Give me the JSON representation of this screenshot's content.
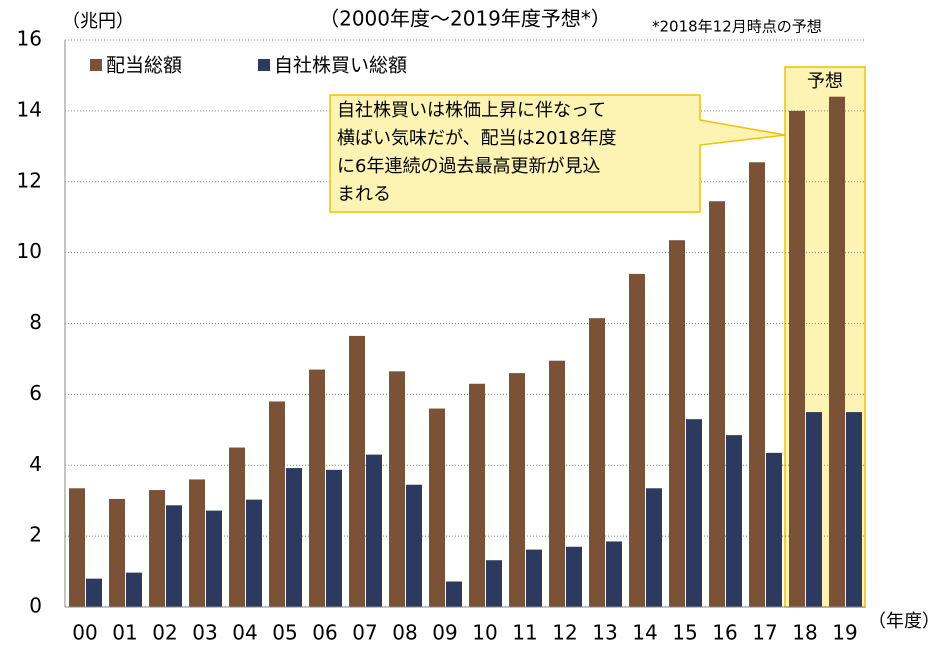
{
  "chart_data": {
    "type": "bar",
    "title": "（2000年度～2019年度予想*）",
    "subtitle": "*2018年12月時点の予想",
    "y_label": "（兆円）",
    "x_label": "（年度）",
    "categories": [
      "00",
      "01",
      "02",
      "03",
      "04",
      "05",
      "06",
      "07",
      "08",
      "09",
      "10",
      "11",
      "12",
      "13",
      "14",
      "15",
      "16",
      "17",
      "18",
      "19"
    ],
    "series": [
      {
        "name": "配当総額",
        "color": "#7b5236",
        "values": [
          3.35,
          3.05,
          3.3,
          3.6,
          4.5,
          5.8,
          6.7,
          7.65,
          6.65,
          5.6,
          6.3,
          6.6,
          6.95,
          8.15,
          9.4,
          10.35,
          11.45,
          12.55,
          14.0,
          14.4
        ]
      },
      {
        "name": "自社株買い総額",
        "color": "#2b3a5e",
        "values": [
          0.8,
          0.97,
          2.87,
          2.72,
          3.03,
          3.92,
          3.87,
          4.3,
          3.45,
          0.72,
          1.32,
          1.62,
          1.7,
          1.85,
          3.35,
          5.3,
          4.85,
          4.35,
          5.5,
          5.5
        ]
      }
    ],
    "ylim": [
      0,
      16
    ],
    "yticks": [
      0,
      2,
      4,
      6,
      8,
      10,
      12,
      14,
      16
    ],
    "grid": true,
    "forecast_label": "予想",
    "annotation": [
      "自社株買いは株価上昇に伴なって",
      "横ばい気味だが、配当は2018年度",
      "に6年連続の過去最高更新が見込",
      "まれる"
    ]
  }
}
